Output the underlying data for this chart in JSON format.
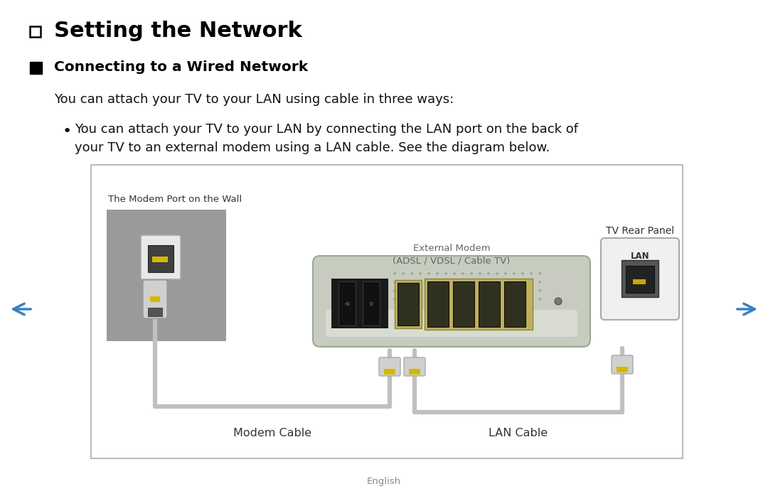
{
  "title": "Setting the Network",
  "subtitle": "Connecting to a Wired Network",
  "body_text": "You can attach your TV to your LAN using cable in three ways:",
  "bullet_line1": "You can attach your TV to your LAN by connecting the LAN port on the back of",
  "bullet_line2": "your TV to an external modem using a LAN cable. See the diagram below.",
  "wall_label": "The Modem Port on the Wall",
  "modem_label_line1": "External Modem",
  "modem_label_line2": "(ADSL / VDSL / Cable TV)",
  "tv_label": "TV Rear Panel",
  "modem_cable_label": "Modem Cable",
  "lan_cable_label": "LAN Cable",
  "lan_port_label": "LAN",
  "footer": "English",
  "bg_color": "#ffffff",
  "border_color": "#bbbbbb",
  "title_color": "#000000",
  "text_color": "#111111",
  "nav_arrow_color": "#3a7fc0",
  "cable_color": "#c0c0c0",
  "label_color": "#666666",
  "diagram_label_color": "#333333",
  "wall_color": "#9a9a9a",
  "modem_body_grad": "#c8cec0",
  "modem_body_color": "#c5c9be",
  "tv_panel_color": "#f2f2f2"
}
